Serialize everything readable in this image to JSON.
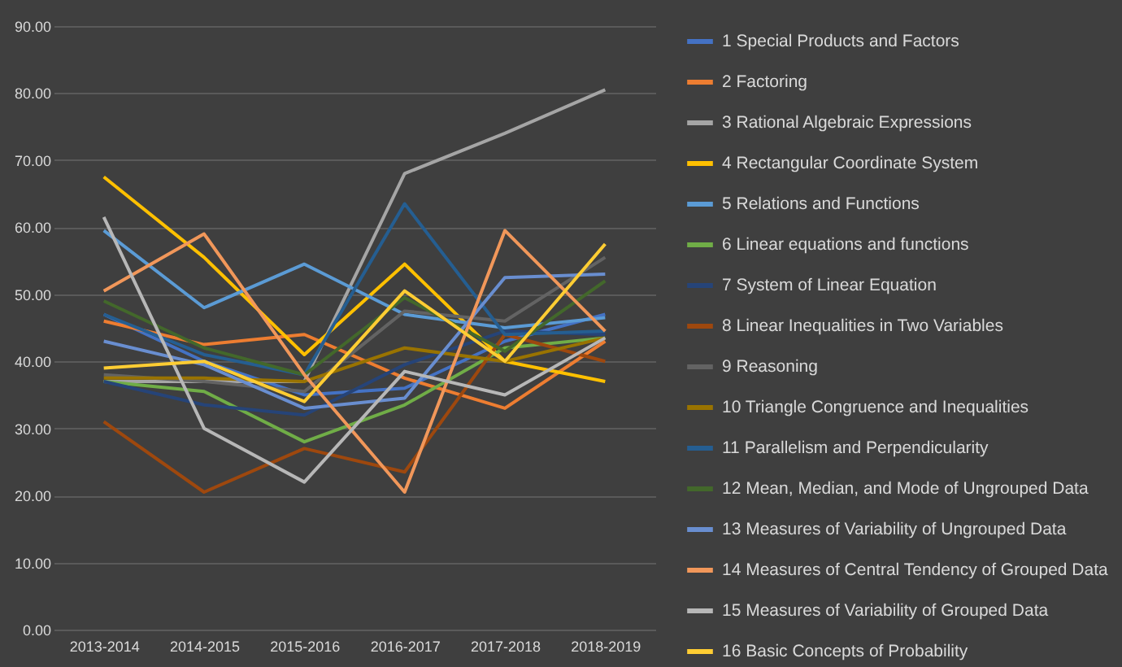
{
  "chart_data": {
    "type": "line",
    "categories": [
      "2013-2014",
      "2014-2015",
      "2015-2016",
      "2016-2017",
      "2017-2018",
      "2018-2019"
    ],
    "series": [
      {
        "name": "1 Special Products and Factors",
        "color": "#4472c4",
        "values": [
          47,
          40,
          35,
          36,
          43,
          47
        ]
      },
      {
        "name": "2 Factoring",
        "color": "#ed7d31",
        "values": [
          46,
          42.5,
          44,
          37.5,
          33,
          43
        ]
      },
      {
        "name": "3 Rational Algebraic Expressions",
        "color": "#a5a5a5",
        "values": [
          37,
          37,
          37,
          68,
          74,
          80.5
        ]
      },
      {
        "name": "4 Rectangular Coordinate System",
        "color": "#ffc000",
        "values": [
          67.5,
          55.5,
          41,
          54.5,
          40,
          37
        ]
      },
      {
        "name": "5 Relations and Functions",
        "color": "#5b9bd5",
        "values": [
          59.5,
          48,
          54.5,
          47,
          45,
          46.5
        ]
      },
      {
        "name": "6 Linear equations and functions",
        "color": "#70ad47",
        "values": [
          37,
          35.5,
          28,
          33.5,
          42,
          43.5
        ]
      },
      {
        "name": "7 System of Linear Equation",
        "color": "#264478",
        "values": [
          37,
          33.5,
          32,
          39.5,
          44.5,
          44
        ]
      },
      {
        "name": "8 Linear Inequalities in Two Variables",
        "color": "#9e480e",
        "values": [
          31,
          20.5,
          27,
          23.5,
          44,
          40
        ]
      },
      {
        "name": "9 Reasoning",
        "color": "#636363",
        "values": [
          38,
          37,
          35.5,
          47.5,
          46,
          55.5
        ]
      },
      {
        "name": "10 Triangle Congruence and Inequalities",
        "color": "#997300",
        "values": [
          37.5,
          37.5,
          37,
          42,
          40,
          43.5
        ]
      },
      {
        "name": "11 Parallelism and Perpendicularity",
        "color": "#255e91",
        "values": [
          47,
          41,
          38,
          63.5,
          44,
          44.5
        ]
      },
      {
        "name": "12 Mean, Median, and Mode of Ungrouped Data",
        "color": "#43682b",
        "values": [
          49,
          42,
          38,
          49.5,
          41.5,
          52
        ]
      },
      {
        "name": "13 Measures of Variability of Ungrouped Data",
        "color": "#698ed0",
        "values": [
          43,
          39.5,
          33,
          34.5,
          52.5,
          53
        ]
      },
      {
        "name": "14 Measures of Central Tendency of Grouped Data",
        "color": "#f1975a",
        "values": [
          50.5,
          59,
          38,
          20.5,
          59.5,
          44.5
        ]
      },
      {
        "name": "15 Measures of Variability of Grouped Data",
        "color": "#b7b7b7",
        "values": [
          61.5,
          30,
          22,
          38.5,
          35,
          43.5
        ]
      },
      {
        "name": "16 Basic Concepts of Probability",
        "color": "#ffcd33",
        "values": [
          39,
          40,
          34,
          50.5,
          40,
          57.5
        ]
      }
    ],
    "ylim": [
      0,
      90
    ],
    "yticks": [
      {
        "value": 0,
        "label": "0.00"
      },
      {
        "value": 10,
        "label": "10.00"
      },
      {
        "value": 20,
        "label": "20.00"
      },
      {
        "value": 30,
        "label": "30.00"
      },
      {
        "value": 40,
        "label": "40.00"
      },
      {
        "value": 50,
        "label": "50.00"
      },
      {
        "value": 60,
        "label": "60.00"
      },
      {
        "value": 70,
        "label": "70.00"
      },
      {
        "value": 80,
        "label": "80.00"
      },
      {
        "value": 90,
        "label": "90.00"
      }
    ],
    "grid": "y",
    "legend": "right",
    "marker": "none",
    "line_style": "solid"
  }
}
